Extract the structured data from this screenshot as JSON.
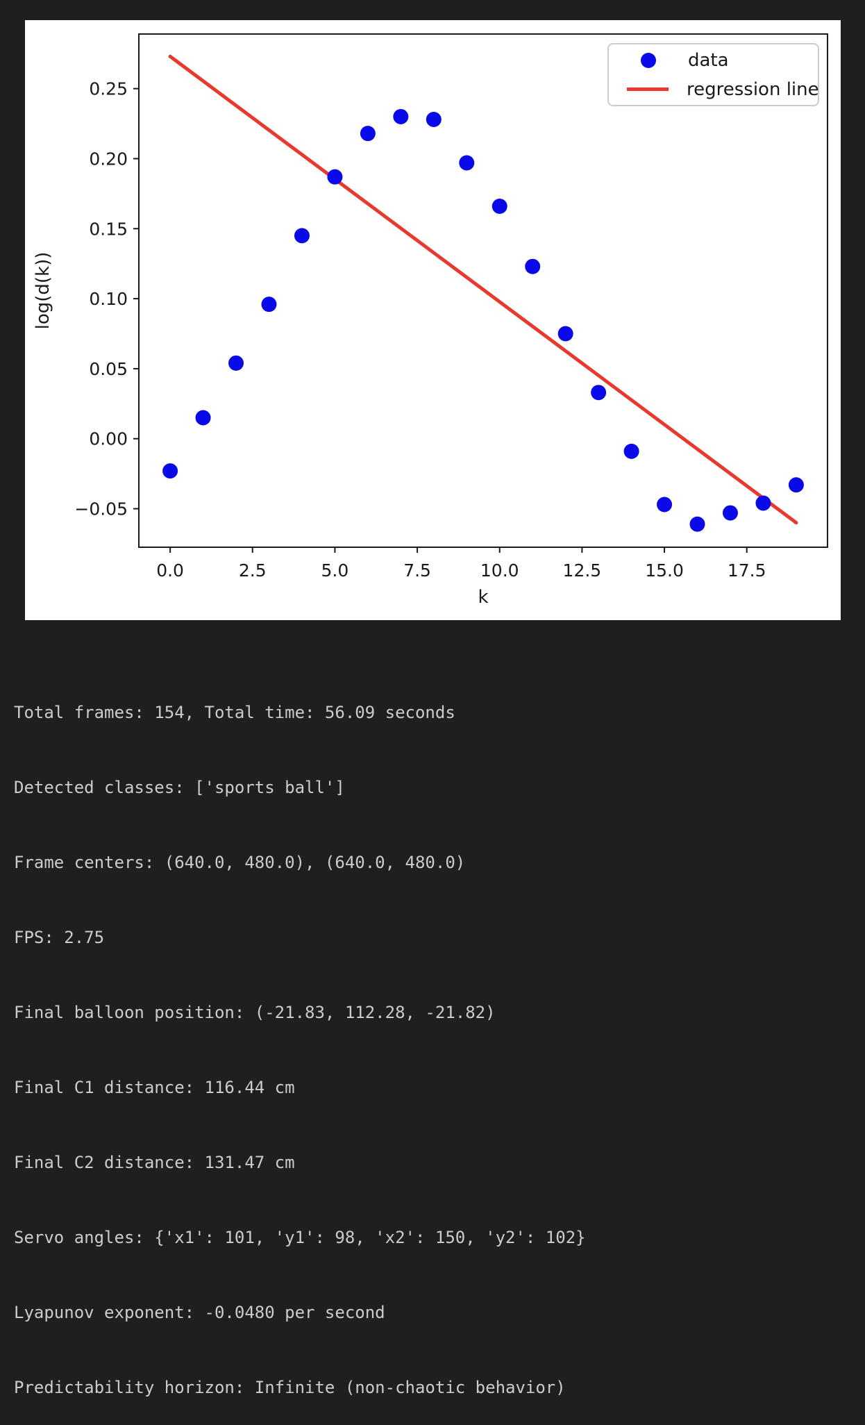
{
  "chart_data": {
    "type": "scatter",
    "title": "",
    "xlabel": "k",
    "ylabel": "log(d(k))",
    "x": [
      0,
      1,
      2,
      3,
      4,
      5,
      6,
      7,
      8,
      9,
      10,
      11,
      12,
      13,
      14,
      15,
      16,
      17,
      18,
      19
    ],
    "y": [
      -0.023,
      0.015,
      0.054,
      0.096,
      0.145,
      0.187,
      0.218,
      0.23,
      0.228,
      0.197,
      0.166,
      0.123,
      0.075,
      0.033,
      -0.009,
      -0.047,
      -0.061,
      -0.053,
      -0.046,
      -0.033
    ],
    "regression_line": {
      "x": [
        0,
        19.0
      ],
      "y": [
        0.273,
        -0.06
      ]
    },
    "xlim": [
      -0.95,
      19.95
    ],
    "ylim": [
      -0.0775,
      0.289
    ],
    "xticks": {
      "values": [
        0,
        2.5,
        5,
        7.5,
        10,
        12.5,
        15,
        17.5
      ],
      "labels": [
        "0.0",
        "2.5",
        "5.0",
        "7.5",
        "10.0",
        "12.5",
        "15.0",
        "17.5"
      ]
    },
    "yticks": {
      "values": [
        -0.05,
        0,
        0.05,
        0.1,
        0.15,
        0.2,
        0.25
      ],
      "labels": [
        "−0.05",
        "0.00",
        "0.05",
        "0.10",
        "0.15",
        "0.20",
        "0.25"
      ]
    },
    "legend": [
      "data",
      "regression line"
    ],
    "legend_position": "upper right",
    "grid": false,
    "colors": {
      "dot": "#0a0ae8",
      "line": "#e8392e",
      "axis": "#1a1a1a",
      "legend_border": "#cccccc"
    }
  },
  "terminal": {
    "lines": [
      "Total frames: 154, Total time: 56.09 seconds",
      "Detected classes: ['sports ball']",
      "Frame centers: (640.0, 480.0), (640.0, 480.0)",
      "FPS: 2.75",
      "Final balloon position: (-21.83, 112.28, -21.82)",
      "Final C1 distance: 116.44 cm",
      "Final C2 distance: 131.47 cm",
      "Servo angles: {'x1': 101, 'y1': 98, 'x2': 150, 'y2': 102}",
      "Lyapunov exponent: -0.0480 per second",
      "Predictability horizon: Infinite (non-chaotic behavior)"
    ],
    "background": "#1f1f1f",
    "foreground": "#cccccc"
  }
}
